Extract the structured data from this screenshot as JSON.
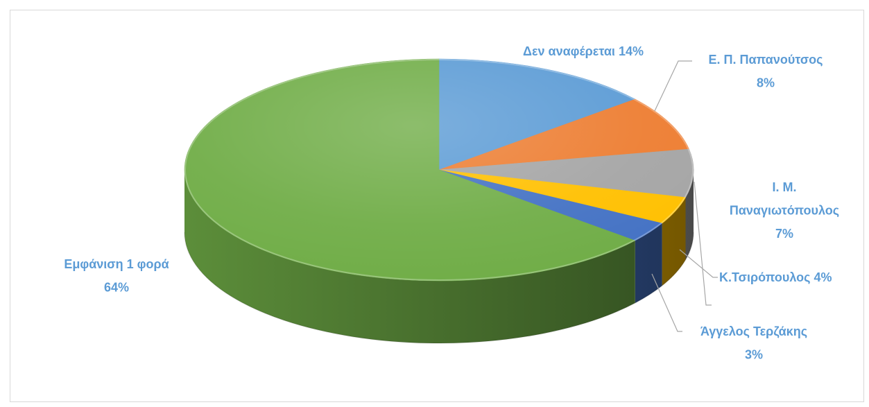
{
  "chart_data": {
    "type": "pie",
    "three_d": true,
    "categories": [
      "Δεν αναφέρεται",
      "Ε. Π. Παπανούτσος",
      "Ι. Μ. Παναγιωτόπουλος",
      "Κ.Τσιρόπουλος",
      "Άγγελος Τερζάκης",
      "Εμφάνιση 1 φορά"
    ],
    "values": [
      14,
      8,
      7,
      4,
      3,
      64
    ],
    "data_labels": [
      "14%",
      "8%",
      "7%",
      "4%",
      "3%",
      "64%"
    ],
    "colors": [
      "#5B9BD5",
      "#ED7D31",
      "#A5A5A5",
      "#FFC000",
      "#4472C4",
      "#70AD47"
    ],
    "label_color": "#5B9BD5"
  }
}
